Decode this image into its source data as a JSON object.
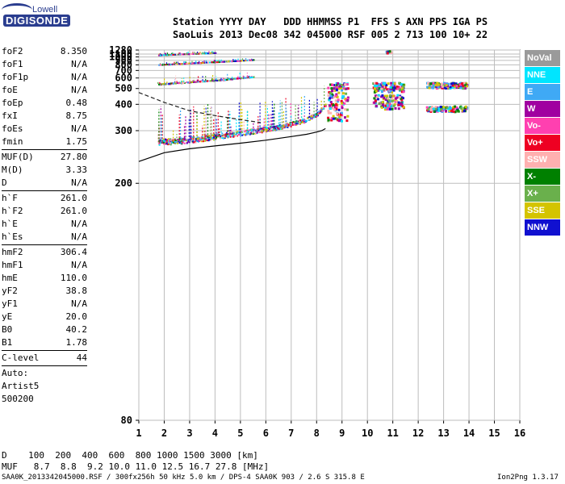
{
  "logo": {
    "line1": "Lowell",
    "line2": "DIGISONDE"
  },
  "header": {
    "line1": "Station YYYY DAY   DDD HHMMSS P1  FFS S AXN PPS IGA PS",
    "line2": "SaoLuis 2013 Dec08 342 045000 RSF 005 2 713 100 10+ 22"
  },
  "params": {
    "groups": [
      [
        [
          "foF2",
          "8.350"
        ],
        [
          "foF1",
          "N/A"
        ],
        [
          "foF1p",
          "N/A"
        ],
        [
          "foE",
          "N/A"
        ],
        [
          "foEp",
          "0.48"
        ],
        [
          "fxI",
          "8.75"
        ],
        [
          "foEs",
          "N/A"
        ],
        [
          "fmin",
          "1.75"
        ]
      ],
      [
        [
          "MUF(D)",
          "27.80"
        ],
        [
          "M(D)",
          "3.33"
        ],
        [
          "D",
          "N/A"
        ]
      ],
      [
        [
          "h`F",
          "261.0"
        ],
        [
          "h`F2",
          "261.0"
        ],
        [
          "h`E",
          "N/A"
        ],
        [
          "h`Es",
          "N/A"
        ]
      ],
      [
        [
          "hmF2",
          "306.4"
        ],
        [
          "hmF1",
          "N/A"
        ],
        [
          "hmE",
          "110.0"
        ],
        [
          "yF2",
          "38.8"
        ],
        [
          "yF1",
          "N/A"
        ],
        [
          "yE",
          "20.0"
        ],
        [
          "B0",
          "40.2"
        ],
        [
          "B1",
          "1.78"
        ]
      ],
      [
        [
          "C-level",
          "44"
        ]
      ]
    ],
    "notes": [
      "Auto:",
      "Artist5",
      "500200"
    ]
  },
  "legend": [
    {
      "label": "NoVal",
      "color": "#9a9a9a"
    },
    {
      "label": "NNE",
      "color": "#00e5ff"
    },
    {
      "label": "E",
      "color": "#3fa9f5"
    },
    {
      "label": "W",
      "color": "#a000a0"
    },
    {
      "label": "Vo-",
      "color": "#ff40b0"
    },
    {
      "label": "Vo+",
      "color": "#ee0022"
    },
    {
      "label": "SSW",
      "color": "#ffb0b0"
    },
    {
      "label": "X-",
      "color": "#008000"
    },
    {
      "label": "X+",
      "color": "#6ab04c"
    },
    {
      "label": "SSE",
      "color": "#d4c400"
    },
    {
      "label": "NNW",
      "color": "#1010d0"
    }
  ],
  "footer": {
    "d_row": "D    100  200  400  600  800 1000 1500 3000 [km]",
    "muf_row": "MUF   8.7  8.8  9.2 10.0 11.0 12.5 16.7 27.8 [MHz]",
    "file_line": "SAA0K_2013342045000.RSF / 300fx256h 50 kHz 5.0 km / DPS-4 SAA0K 903 / 2.6 S 315.8 E",
    "version": "Ion2Png 1.3.17"
  },
  "chart_data": {
    "type": "scatter",
    "xlim": [
      1,
      16
    ],
    "ylim": [
      80,
      1280
    ],
    "y_scale": "reciprocal",
    "x_ticks": [
      1,
      2,
      3,
      4,
      5,
      6,
      7,
      8,
      9,
      10,
      11,
      12,
      13,
      14,
      15,
      16
    ],
    "y_ticks": [
      80,
      200,
      300,
      400,
      500,
      600,
      700,
      800,
      900,
      1000,
      1100,
      1280
    ],
    "grid": true,
    "traces": [
      {
        "name": "O-trace",
        "x": [
          1.75,
          2.5,
          3.5,
          4.5,
          5.5,
          6.5,
          7.0,
          7.5,
          8.0,
          8.2,
          8.35
        ],
        "y": [
          270,
          272,
          278,
          288,
          298,
          310,
          320,
          332,
          355,
          380,
          400
        ]
      },
      {
        "name": "2nd hop",
        "x": [
          1.75,
          2.5,
          3.5,
          4.5,
          5.5
        ],
        "y": [
          540,
          552,
          570,
          590,
          620
        ]
      },
      {
        "name": "3rd hop",
        "x": [
          1.75,
          2.5,
          3.5,
          4.5,
          5.5
        ],
        "y": [
          810,
          830,
          860,
          890,
          930
        ]
      },
      {
        "name": "4th hop",
        "x": [
          1.75,
          2.5,
          3.5,
          4.0
        ],
        "y": [
          1080,
          1110,
          1150,
          1170
        ]
      }
    ],
    "profile": {
      "x": [
        1.0,
        2.0,
        3.0,
        4.0,
        5.0,
        6.0,
        7.0,
        7.6,
        8.0,
        8.2,
        8.35
      ],
      "y": [
        232,
        248,
        256,
        262,
        268,
        275,
        284,
        290,
        296,
        300,
        306
      ]
    },
    "extrapolation": {
      "x": [
        1.0,
        2.0,
        3.0,
        4.0,
        5.0,
        5.8
      ],
      "y": [
        470,
        410,
        370,
        350,
        335,
        325
      ]
    }
  }
}
